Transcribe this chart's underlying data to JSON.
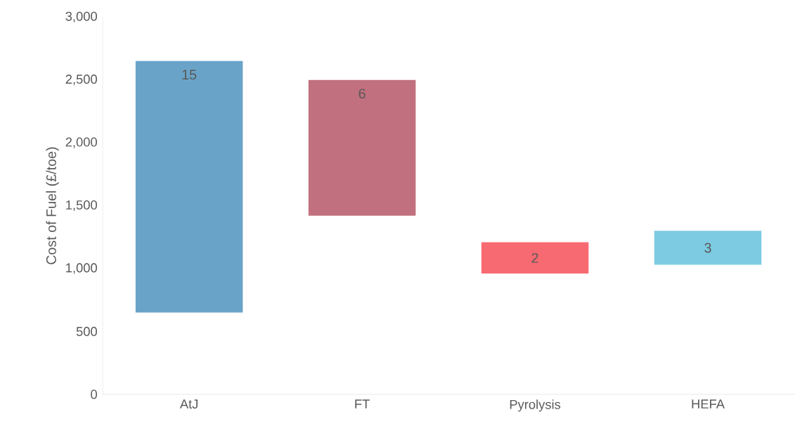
{
  "chart_data": {
    "type": "bar",
    "ylabel": "Cost of Fuel (£/toe)",
    "categories": [
      "AtJ",
      "FT",
      "Pyrolysis",
      "HEFA"
    ],
    "base": [
      650,
      1420,
      960,
      1030
    ],
    "values": [
      2000,
      1080,
      250,
      270
    ],
    "colors": [
      "#6aa3c8",
      "#c1707f",
      "#f86a72",
      "#7ccbe3"
    ],
    "annotations": [
      "15",
      "6",
      "2",
      "3"
    ],
    "ylim": [
      0,
      3000
    ],
    "yticks": [
      0,
      {
        "value": 500,
        "label": "500"
      },
      {
        "value": 1000,
        "label": "1,000"
      },
      {
        "value": 1500,
        "label": "1,500"
      },
      {
        "value": 2000,
        "label": "2,000"
      },
      {
        "value": 2500,
        "label": "2,500"
      },
      {
        "value": 3000,
        "label": "3,000"
      }
    ],
    "grid": false
  }
}
